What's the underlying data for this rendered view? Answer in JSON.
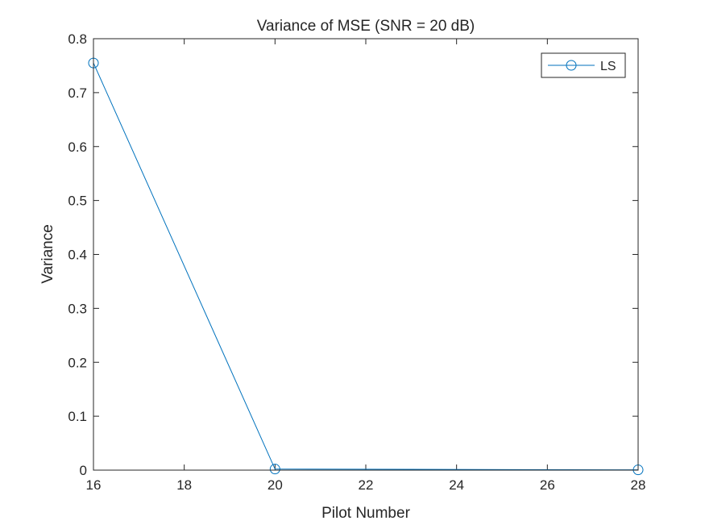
{
  "chart_data": {
    "type": "line",
    "title": "Variance of MSE (SNR = 20 dB)",
    "xlabel": "Pilot Number",
    "ylabel": "Variance",
    "xlim": [
      16,
      28
    ],
    "ylim": [
      0,
      0.8
    ],
    "xticks": [
      16,
      18,
      20,
      22,
      24,
      26,
      28
    ],
    "yticks": [
      0,
      0.1,
      0.2,
      0.3,
      0.4,
      0.5,
      0.6,
      0.7,
      0.8
    ],
    "grid": false,
    "legend_position": "top-right",
    "series": [
      {
        "name": "LS",
        "color": "#0072bd",
        "marker": "circle",
        "x": [
          16,
          20,
          28
        ],
        "y": [
          0.755,
          0.002,
          0.0005
        ]
      }
    ]
  }
}
